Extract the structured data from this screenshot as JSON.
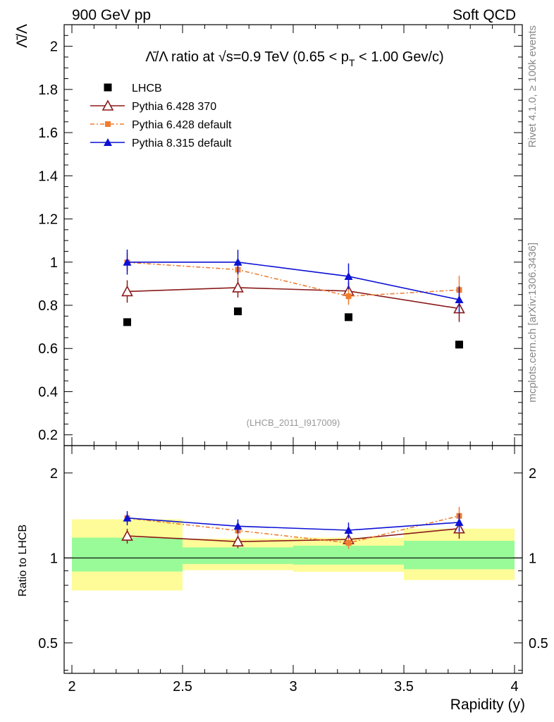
{
  "header": {
    "left": "900 GeV pp",
    "right": "Soft QCD"
  },
  "side_labels": {
    "top": "Rivet 4.1.0, ≥ 100k events",
    "bottom": "mcplots.cern.ch [arXiv:1306.3436]"
  },
  "chart_data": {
    "type": "scatter",
    "title_parts": {
      "prefix": "Λ̄/Λ ratio at √s=0.9 TeV (0.65 < p",
      "sub": "T",
      "suffix": " < 1.00 Gev/c)"
    },
    "ylabel": "Λ̄/Λ",
    "xlabel": "Rapidity (y)",
    "analysis_id": "(LHCB_2011_I917009)",
    "xlim": [
      2,
      4
    ],
    "ylim_main": [
      0.15,
      2.1
    ],
    "ylim_ratio": [
      0.39,
      2.5
    ],
    "yticks_main": [
      "0.2",
      "0.4",
      "0.6",
      "0.8",
      "1",
      "1.2",
      "1.4",
      "1.6",
      "1.8",
      "2"
    ],
    "xticks": [
      "2",
      "2.5",
      "3",
      "3.5",
      "4"
    ],
    "ratio_ylabel": "Ratio to LHCB",
    "ratio_yticks": [
      "0.5",
      "1",
      "2"
    ],
    "x": [
      2.25,
      2.75,
      3.25,
      3.75
    ],
    "bin_edges": [
      2.0,
      2.5,
      3.0,
      3.5,
      4.0
    ],
    "reference": {
      "name": "LHCB",
      "color": "#000000",
      "values": [
        0.722,
        0.772,
        0.745,
        0.618
      ]
    },
    "series": [
      {
        "name": "Pythia 6.428 370",
        "color": "#8b1a1a",
        "marker": "open-triangle",
        "dash": "",
        "values": [
          0.864,
          0.882,
          0.866,
          0.785
        ],
        "errors": [
          0.052,
          0.046,
          0.042,
          0.062
        ]
      },
      {
        "name": "Pythia 6.428 default",
        "color": "#f07d2f",
        "marker": "square",
        "dash": "6,3,2,3",
        "values": [
          0.999,
          0.965,
          0.842,
          0.871
        ],
        "errors": [
          0.04,
          0.036,
          0.04,
          0.066
        ]
      },
      {
        "name": "Pythia 8.315 default",
        "color": "#0c11d4",
        "marker": "filled-triangle",
        "dash": "",
        "values": [
          1.0,
          1.0,
          0.934,
          0.826
        ],
        "errors": [
          0.058,
          0.057,
          0.06,
          0.062
        ]
      }
    ],
    "ratio_band_inner": [
      [
        0.895,
        1.18
      ],
      [
        0.952,
        1.09
      ],
      [
        0.947,
        1.105
      ],
      [
        0.912,
        1.15
      ]
    ],
    "ratio_band_outer": [
      [
        0.767,
        1.37
      ],
      [
        0.905,
        1.17
      ],
      [
        0.893,
        1.18
      ],
      [
        0.835,
        1.27
      ]
    ]
  }
}
